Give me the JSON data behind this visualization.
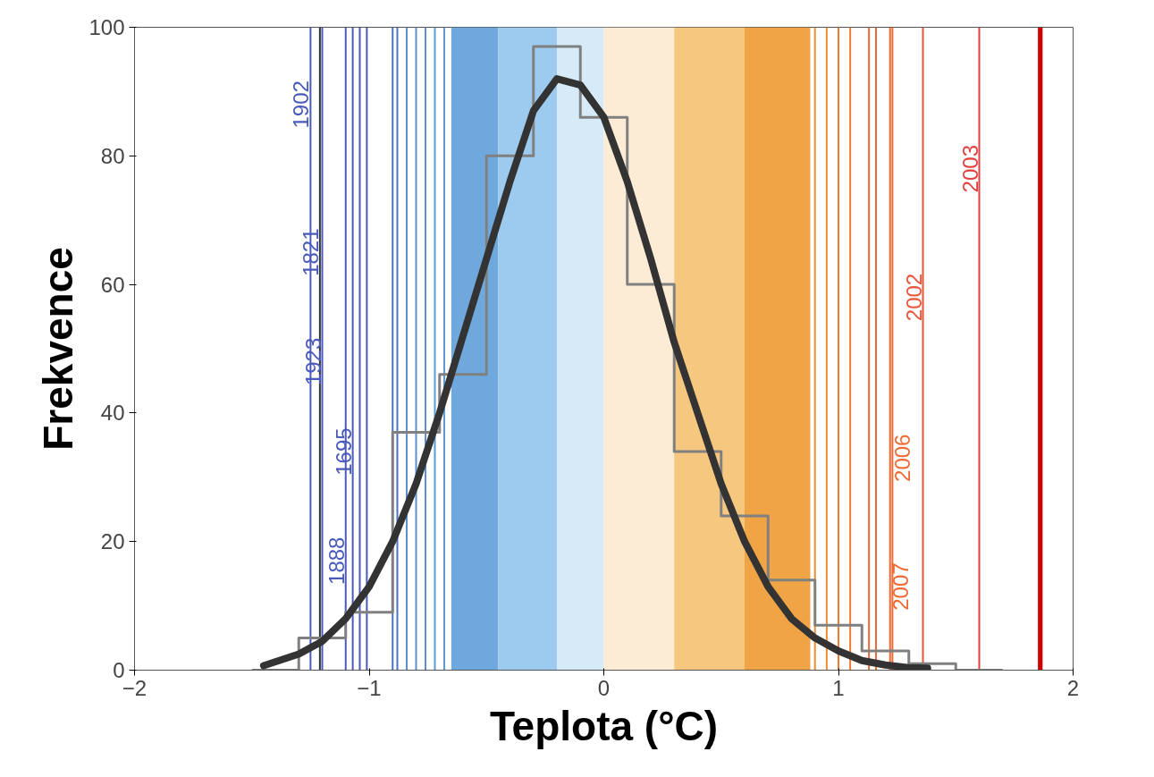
{
  "chart_data": {
    "type": "histogram",
    "xlabel": "Teplota (°C)",
    "ylabel": "Frekvence",
    "bins": [
      -1.5,
      -1.3,
      -1.1,
      -0.9,
      -0.7,
      -0.5,
      -0.3,
      -0.1,
      0.1,
      0.3,
      0.5,
      0.7,
      0.9,
      1.1,
      1.3,
      1.5,
      1.7
    ],
    "values": [
      0,
      5,
      9,
      37,
      46,
      80,
      97,
      86,
      60,
      34,
      24,
      14,
      7,
      3,
      1,
      0
    ],
    "color": "#808080",
    "series": [
      {
        "type": "line",
        "color": "#333333",
        "x": [
          -1.45,
          -1.3,
          -1.2,
          -1.1,
          -1.0,
          -0.9,
          -0.8,
          -0.7,
          -0.6,
          -0.5,
          -0.4,
          -0.3,
          -0.2,
          -0.1,
          0.0,
          0.1,
          0.2,
          0.3,
          0.4,
          0.5,
          0.6,
          0.7,
          0.8,
          0.9,
          1.0,
          1.1,
          1.2,
          1.3,
          1.38
        ],
        "values": [
          0.7,
          2.5,
          4.5,
          8,
          13,
          20,
          29,
          40,
          52,
          64,
          76,
          87,
          92,
          91,
          86,
          76,
          64,
          51,
          40,
          29,
          20,
          13,
          8,
          5,
          3,
          1.5,
          0.8,
          0.4,
          0.3
        ]
      }
    ],
    "xlim": [
      -2,
      2
    ],
    "ylim": [
      0,
      100
    ],
    "xticks": [
      -2,
      -1,
      0,
      1,
      2
    ],
    "yticks": [
      0,
      20,
      40,
      60,
      80,
      100
    ],
    "grid": false,
    "bands": [
      {
        "axis": "x",
        "from": -0.65,
        "to": -0.45,
        "color": "#6fa8dc"
      },
      {
        "axis": "x",
        "from": -0.45,
        "to": -0.2,
        "color": "#9ccbef"
      },
      {
        "axis": "x",
        "from": -0.2,
        "to": 0,
        "color": "#d6eaf8"
      },
      {
        "axis": "x",
        "from": 0,
        "to": 0.3,
        "color": "#fcecd5"
      },
      {
        "axis": "x",
        "from": 0.3,
        "to": 0.6,
        "color": "#f6c77f"
      },
      {
        "axis": "x",
        "from": 0.6,
        "to": 0.88,
        "color": "#f0a445"
      },
      {
        "axis": "x",
        "from": 1.85,
        "to": 1.87,
        "color": "#cc0000"
      }
    ],
    "ref_lines": [
      {
        "axis": "x",
        "value": -1.25,
        "color": "#4a5ab8"
      },
      {
        "axis": "x",
        "value": -1.21,
        "color": "#333333"
      },
      {
        "axis": "x",
        "value": -1.2,
        "color": "#4a5ab8"
      },
      {
        "axis": "x",
        "value": -1.1,
        "color": "#4a5ab8"
      },
      {
        "axis": "x",
        "value": -1.07,
        "color": "#4a5ab8"
      },
      {
        "axis": "x",
        "value": -1.04,
        "color": "#4a5ab8"
      },
      {
        "axis": "x",
        "value": -1.01,
        "color": "#4a5ab8"
      },
      {
        "axis": "x",
        "value": -0.9,
        "color": "#4a72c4"
      },
      {
        "axis": "x",
        "value": -0.88,
        "color": "#4a72c4"
      },
      {
        "axis": "x",
        "value": -0.84,
        "color": "#5b8fd0"
      },
      {
        "axis": "x",
        "value": -0.8,
        "color": "#5b8fd0"
      },
      {
        "axis": "x",
        "value": -0.76,
        "color": "#5b8fd0"
      },
      {
        "axis": "x",
        "value": -0.72,
        "color": "#5b9bd5"
      },
      {
        "axis": "x",
        "value": -0.68,
        "color": "#5b9bd5"
      },
      {
        "axis": "x",
        "value": 0.9,
        "color": "#f08c30"
      },
      {
        "axis": "x",
        "value": 0.95,
        "color": "#f08c30"
      },
      {
        "axis": "x",
        "value": 1.0,
        "color": "#f07a30"
      },
      {
        "axis": "x",
        "value": 1.05,
        "color": "#f07a30"
      },
      {
        "axis": "x",
        "value": 1.13,
        "color": "#ee6a35"
      },
      {
        "axis": "x",
        "value": 1.16,
        "color": "#ee6a35"
      },
      {
        "axis": "x",
        "value": 1.22,
        "color": "#ee6a35"
      },
      {
        "axis": "x",
        "value": 1.23,
        "color": "#ee6a35"
      },
      {
        "axis": "x",
        "value": 1.36,
        "color": "#e8553a"
      },
      {
        "axis": "x",
        "value": 1.6,
        "color": "#e04040"
      }
    ],
    "annotations": [
      {
        "text": "1902",
        "x": -1.25,
        "y": 88
      },
      {
        "text": "1821",
        "x": -1.21,
        "y": 65
      },
      {
        "text": "1923",
        "x": -1.2,
        "y": 48
      },
      {
        "text": "1888",
        "x": -1.1,
        "y": 17
      },
      {
        "text": "1695",
        "x": -1.07,
        "y": 34
      },
      {
        "text": "2007",
        "x": 1.22,
        "y": 13
      },
      {
        "text": "2006",
        "x": 1.23,
        "y": 33
      },
      {
        "text": "2002",
        "x": 1.36,
        "y": 58
      },
      {
        "text": "2003",
        "x": 1.6,
        "y": 78
      }
    ]
  }
}
